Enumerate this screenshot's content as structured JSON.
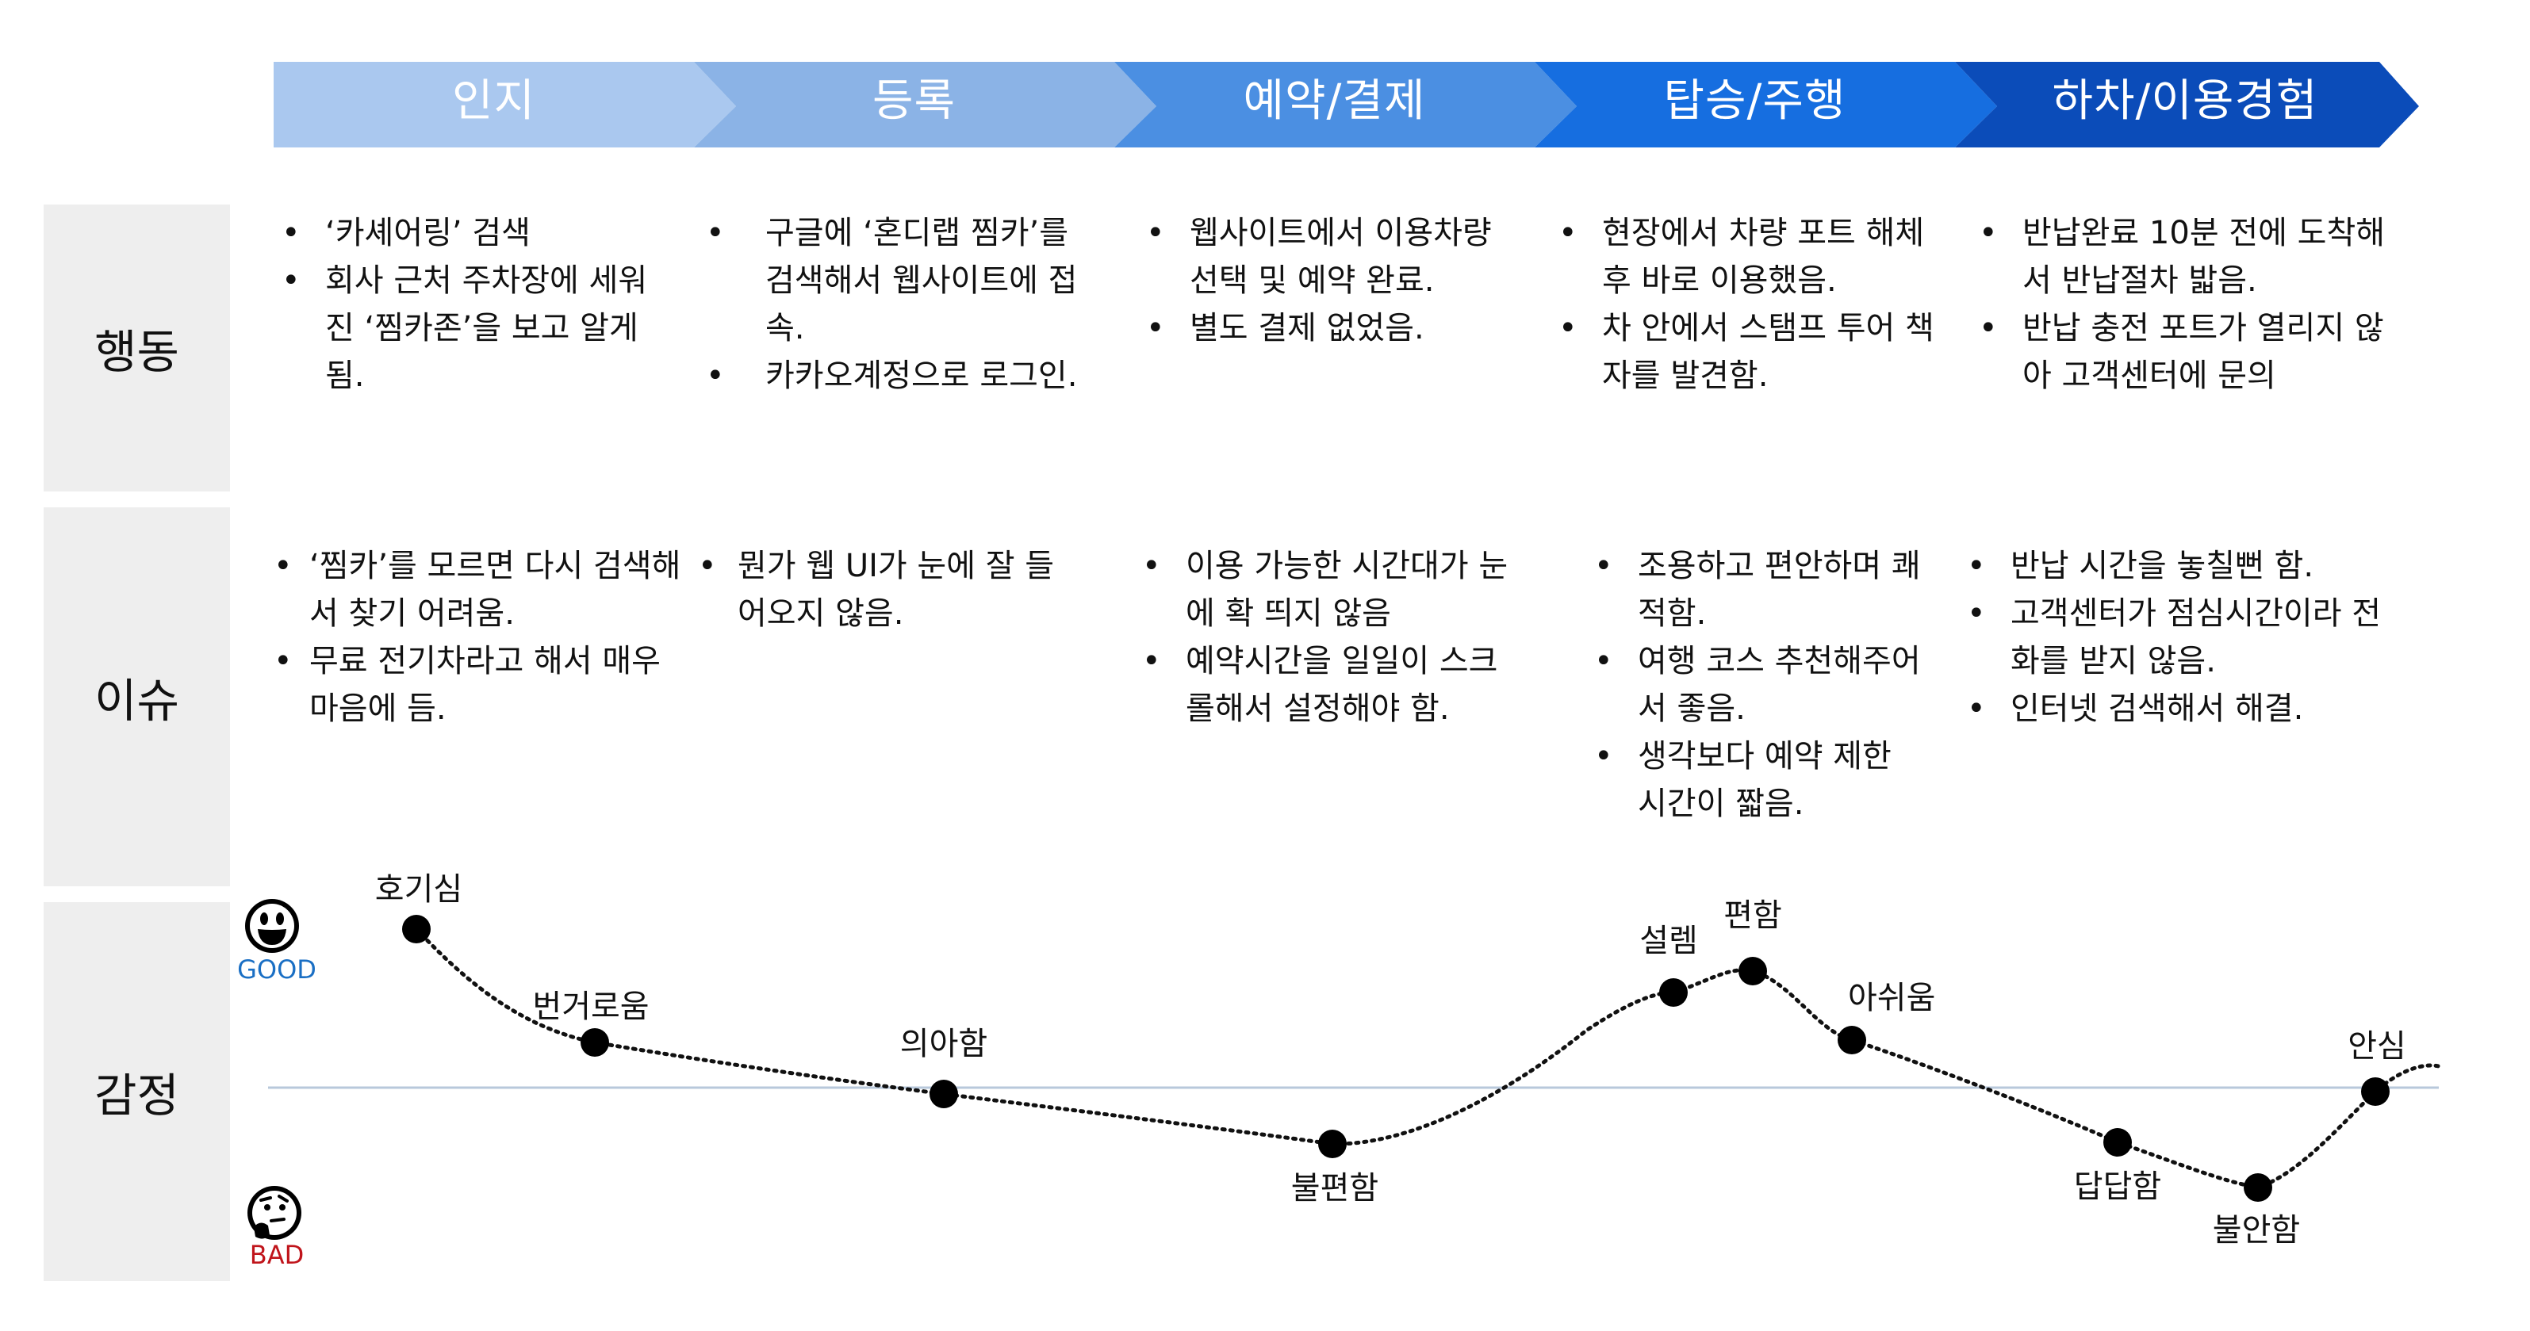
{
  "stages": [
    "인지",
    "등록",
    "예약/결제",
    "탑승/주행",
    "하차/이용경험"
  ],
  "colors": {
    "stage_fills": [
      "#aac8ef",
      "#8bb3e6",
      "#4b8fe2",
      "#166ee0",
      "#0b4cb9"
    ],
    "row_label_bg": "#eeeeee",
    "baseline": "#b8c8db",
    "good": "#1a6fc4",
    "bad": "#c0141b"
  },
  "rows": {
    "action": "행동",
    "issue": "이슈",
    "emotion": "감정"
  },
  "actions": [
    [
      "‘카셰어링’ 검색",
      "회사 근처 주차장에 세워진 ‘찜카존’을 보고 알게 됨."
    ],
    [
      "구글에 ‘혼디랩 찜카’를 검색해서 웹사이트에 접속.",
      "카카오계정으로 로그인."
    ],
    [
      "웹사이트에서 이용차량 선택 및 예약 완료.",
      "별도 결제 없었음."
    ],
    [
      "현장에서 차량 포트 해체 후 바로 이용했음.",
      "차 안에서 스탬프 투어 책자를 발견함."
    ],
    [
      "반납완료 10분 전에 도착해서 반납절차 밟음.",
      "반납 충전 포트가 열리지 않아 고객센터에 문의"
    ]
  ],
  "issues": [
    [
      "‘찜카’를 모르면 다시 검색해서 찾기 어려움.",
      "무료 전기차라고 해서 매우 마음에 듬."
    ],
    [
      "뭔가 웹 UI가 눈에 잘 들어오지 않음."
    ],
    [
      "이용 가능한 시간대가 눈에 확 띄지 않음",
      "예약시간을 일일이 스크롤해서 설정해야 함."
    ],
    [
      "조용하고 편안하며 쾌적함.",
      "여행 코스 추천해주어서 좋음.",
      "생각보다 예약 제한 시간이 짧음."
    ],
    [
      "반납 시간을 놓칠뻔 함.",
      "고객센터가 점심시간이라 전화를 받지 않음.",
      "인터넷 검색해서 해결."
    ]
  ],
  "emotion": {
    "good_label": "GOOD",
    "bad_label": "BAD",
    "good_icon": "smiling-face-icon",
    "bad_icon": "thinking-face-icon",
    "points": [
      {
        "label": "호기심"
      },
      {
        "label": "번거로움"
      },
      {
        "label": "의아함"
      },
      {
        "label": "불편함"
      },
      {
        "label": "설렘"
      },
      {
        "label": "편함"
      },
      {
        "label": "아쉬움"
      },
      {
        "label": "답답함"
      },
      {
        "label": "불안함"
      },
      {
        "label": "안심"
      }
    ]
  }
}
